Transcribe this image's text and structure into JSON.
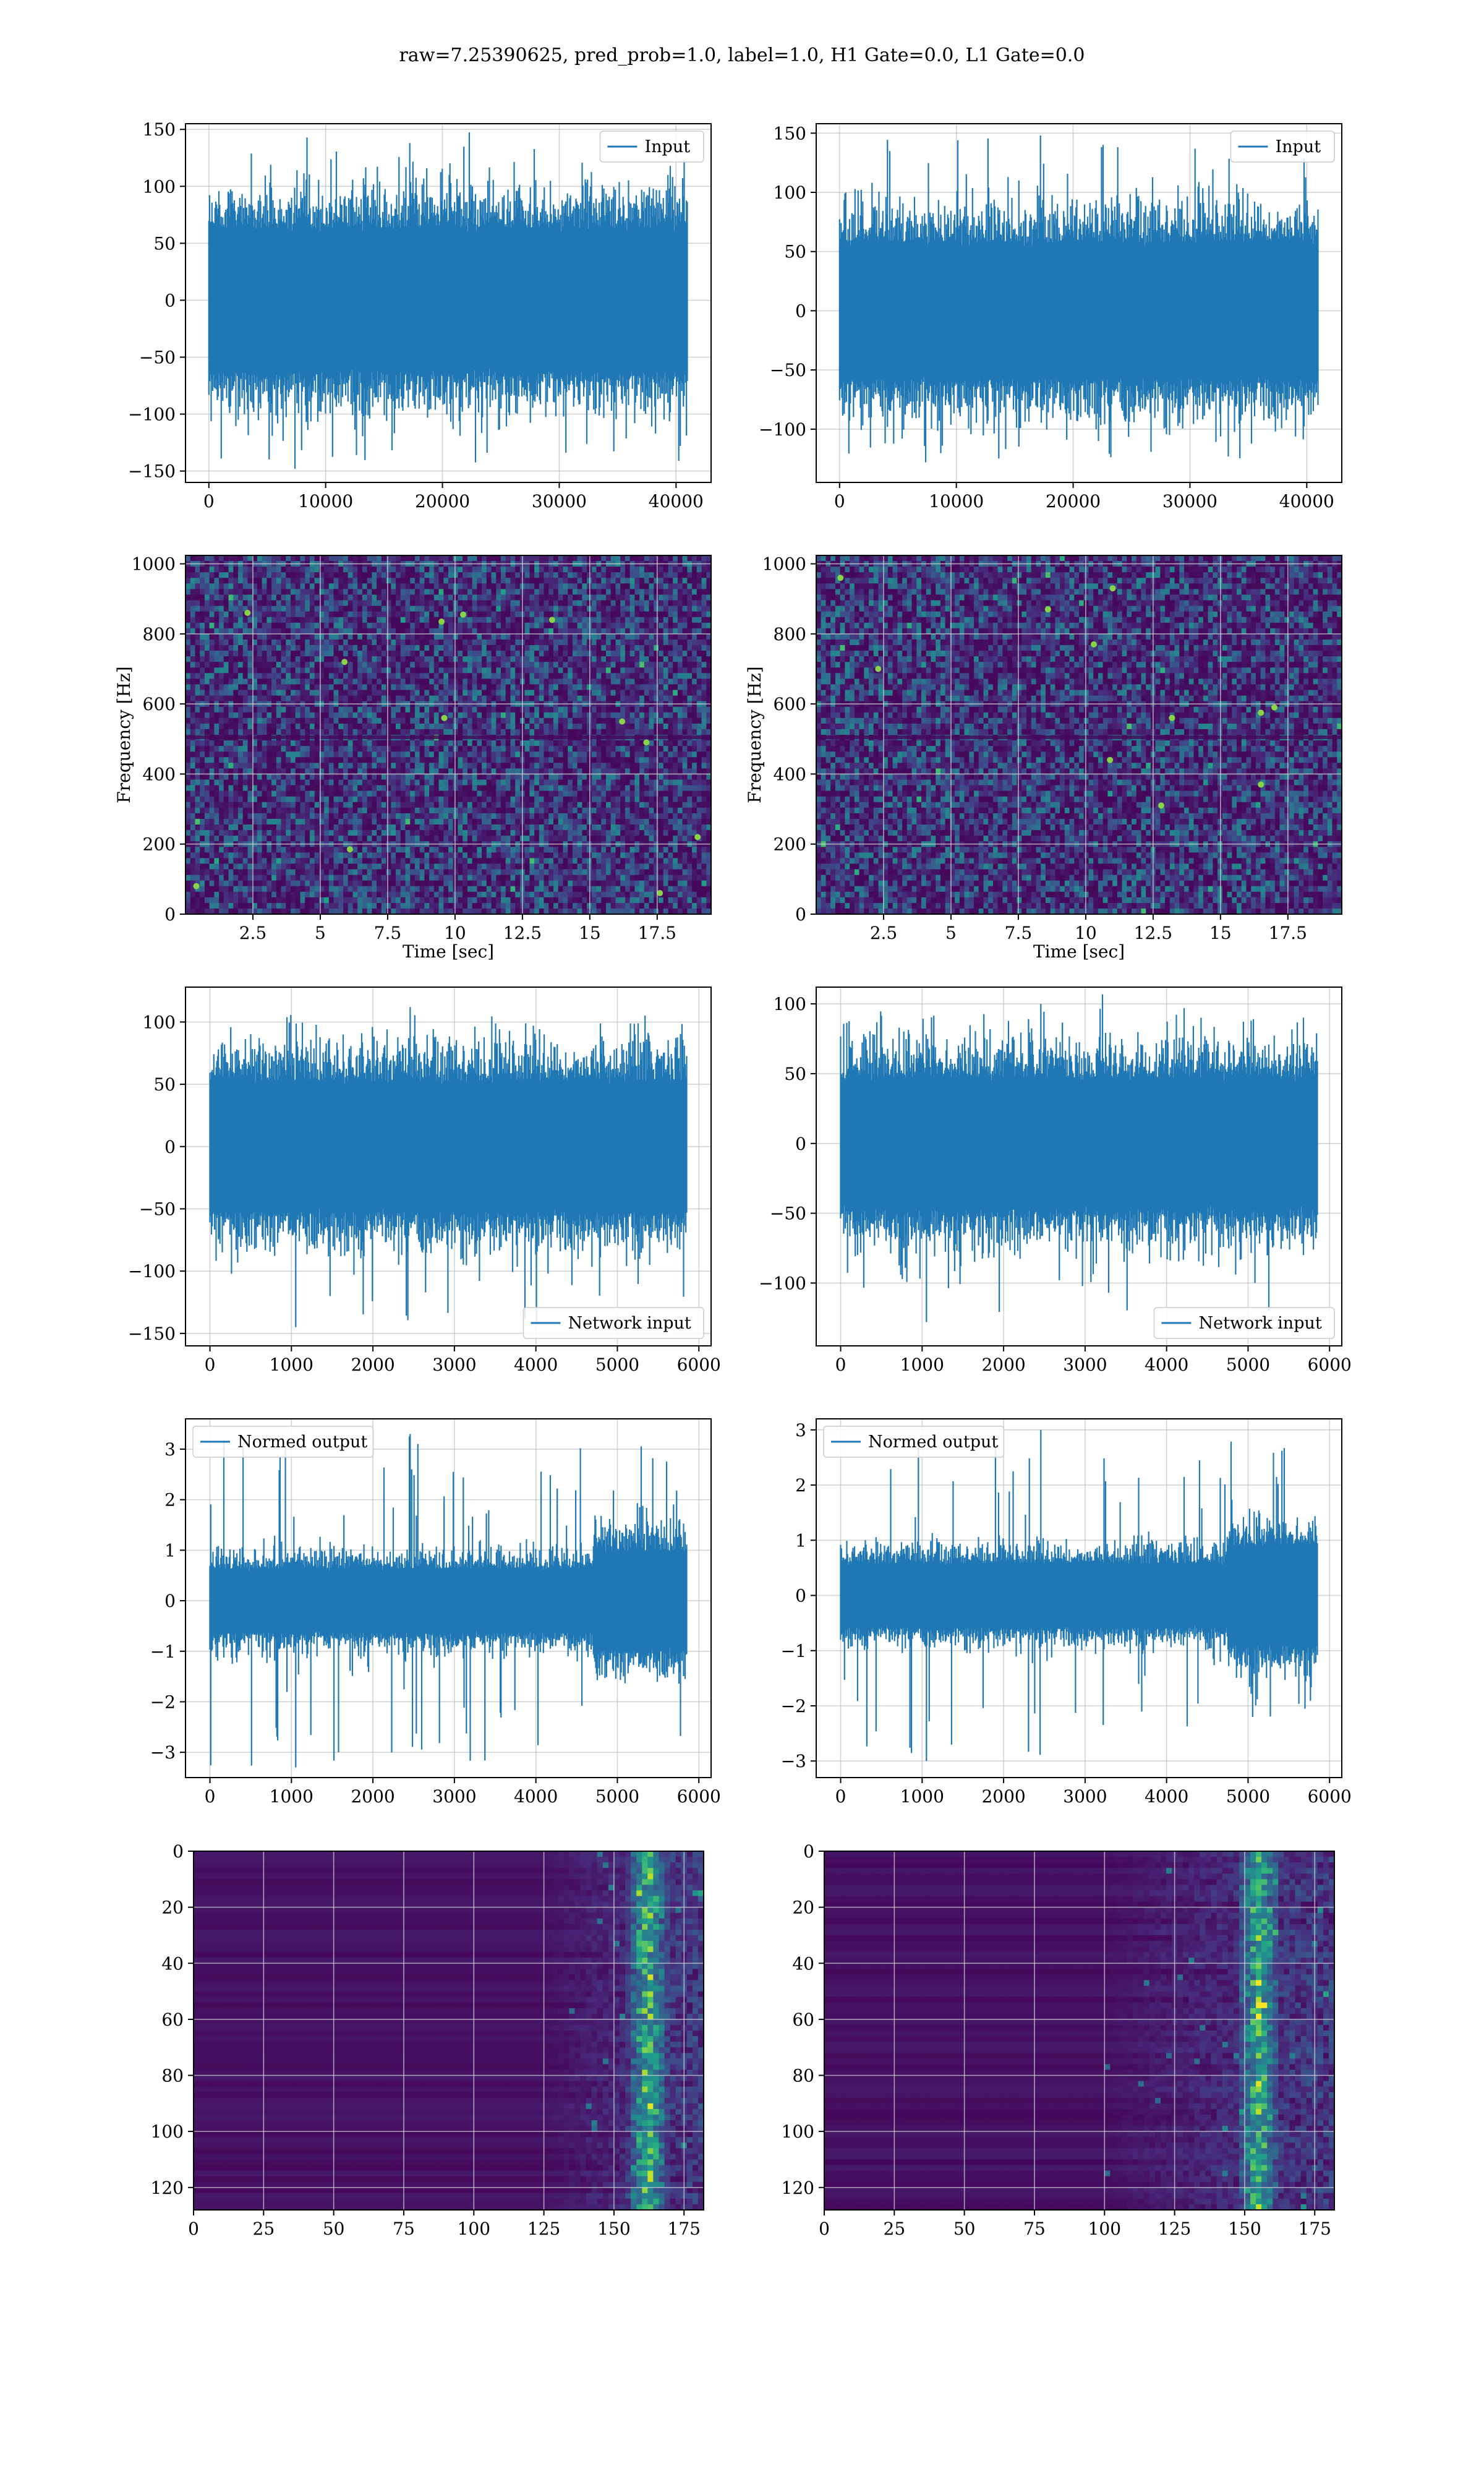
{
  "figure_title": "raw=7.25390625, pred_prob=1.0, label=1.0, H1 Gate=0.0, L1 Gate=0.0",
  "colors": {
    "line": "#1f77b4",
    "viridis_low": "#440154",
    "viridis_high": "#fde725",
    "grid": "#b0b0b0"
  },
  "chart_data": [
    {
      "id": "input-h1",
      "type": "line",
      "series": [
        {
          "name": "Input",
          "envelope": {
            "n": 40960,
            "core": 60,
            "peak_low": -148,
            "peak_high": 138
          }
        }
      ],
      "xlim": [
        -2000,
        43000
      ],
      "ylim": [
        -160,
        155
      ],
      "xticks": [
        0,
        10000,
        20000,
        30000,
        40000
      ],
      "yticks": [
        -150,
        -100,
        -50,
        0,
        50,
        100,
        150
      ],
      "xlabel": "",
      "ylabel": "",
      "legend": "upper right",
      "grid": true
    },
    {
      "id": "input-l1",
      "type": "line",
      "series": [
        {
          "name": "Input",
          "envelope": {
            "n": 40960,
            "core": 55,
            "peak_low": -128,
            "peak_high": 148
          }
        }
      ],
      "xlim": [
        -2000,
        43000
      ],
      "ylim": [
        -145,
        158
      ],
      "xticks": [
        0,
        10000,
        20000,
        30000,
        40000
      ],
      "yticks": [
        -100,
        -50,
        0,
        50,
        100,
        150
      ],
      "xlabel": "",
      "ylabel": "",
      "legend": "upper right",
      "grid": true
    },
    {
      "id": "spec-h1",
      "type": "heatmap",
      "xlim": [
        0,
        19.5
      ],
      "ylim": [
        0,
        1024
      ],
      "xticks": [
        2.5,
        5.0,
        7.5,
        10.0,
        12.5,
        15.0,
        17.5
      ],
      "yticks": [
        0,
        200,
        400,
        600,
        800,
        1000
      ],
      "xlabel": "Time [sec]",
      "ylabel": "Frequency [Hz]",
      "grid": true,
      "bright_spots": [
        [
          2.3,
          860
        ],
        [
          9.5,
          835
        ],
        [
          10.3,
          855
        ],
        [
          13.6,
          840
        ],
        [
          9.6,
          560
        ],
        [
          16.2,
          550
        ],
        [
          17.1,
          490
        ],
        [
          19.0,
          220
        ],
        [
          0.4,
          80
        ],
        [
          6.1,
          185
        ],
        [
          17.6,
          60
        ],
        [
          5.9,
          720
        ]
      ]
    },
    {
      "id": "spec-l1",
      "type": "heatmap",
      "xlim": [
        0,
        19.5
      ],
      "ylim": [
        0,
        1024
      ],
      "xticks": [
        2.5,
        5.0,
        7.5,
        10.0,
        12.5,
        15.0,
        17.5
      ],
      "yticks": [
        0,
        200,
        400,
        600,
        800,
        1000
      ],
      "xlabel": "Time [sec]",
      "ylabel": "Frequency [Hz]",
      "grid": true,
      "bright_spots": [
        [
          10.3,
          770
        ],
        [
          11.0,
          930
        ],
        [
          16.5,
          575
        ],
        [
          17.0,
          590
        ],
        [
          16.5,
          370
        ],
        [
          13.2,
          560
        ],
        [
          12.8,
          310
        ],
        [
          8.6,
          870
        ],
        [
          0.9,
          960
        ],
        [
          2.3,
          700
        ],
        [
          10.9,
          440
        ]
      ]
    },
    {
      "id": "netin-h1",
      "type": "line",
      "series": [
        {
          "name": "Network input",
          "envelope": {
            "n": 5850,
            "core": 50,
            "peak_low": -145,
            "peak_high": 112
          }
        }
      ],
      "xlim": [
        -300,
        6150
      ],
      "ylim": [
        -160,
        128
      ],
      "xticks": [
        0,
        1000,
        2000,
        3000,
        4000,
        5000,
        6000
      ],
      "yticks": [
        -150,
        -100,
        -50,
        0,
        50,
        100
      ],
      "xlabel": "",
      "ylabel": "",
      "legend": "lower right",
      "grid": true
    },
    {
      "id": "netin-l1",
      "type": "line",
      "series": [
        {
          "name": "Network input",
          "envelope": {
            "n": 5850,
            "core": 45,
            "peak_low": -128,
            "peak_high": 100
          }
        }
      ],
      "xlim": [
        -300,
        6150
      ],
      "ylim": [
        -145,
        112
      ],
      "xticks": [
        0,
        1000,
        2000,
        3000,
        4000,
        5000,
        6000
      ],
      "yticks": [
        -100,
        -50,
        0,
        50,
        100
      ],
      "xlabel": "",
      "ylabel": "",
      "legend": "lower right",
      "grid": true
    },
    {
      "id": "normed-h1",
      "type": "line",
      "series": [
        {
          "name": "Normed output",
          "envelope": {
            "n": 5850,
            "core": 0.6,
            "peak_low": -3.3,
            "peak_high": 3.3,
            "burst_start": 4700
          }
        }
      ],
      "xlim": [
        -300,
        6150
      ],
      "ylim": [
        -3.5,
        3.6
      ],
      "xticks": [
        0,
        1000,
        2000,
        3000,
        4000,
        5000,
        6000
      ],
      "yticks": [
        -3,
        -2,
        -1,
        0,
        1,
        2,
        3
      ],
      "xlabel": "",
      "ylabel": "",
      "legend": "upper left",
      "grid": true
    },
    {
      "id": "normed-l1",
      "type": "line",
      "series": [
        {
          "name": "Normed output",
          "envelope": {
            "n": 5850,
            "core": 0.55,
            "peak_low": -3.0,
            "peak_high": 3.0,
            "burst_start": 4750
          }
        }
      ],
      "xlim": [
        -300,
        6150
      ],
      "ylim": [
        -3.3,
        3.2
      ],
      "xticks": [
        0,
        1000,
        2000,
        3000,
        4000,
        5000,
        6000
      ],
      "yticks": [
        -3,
        -2,
        -1,
        0,
        1,
        2,
        3
      ],
      "xlabel": "",
      "ylabel": "",
      "legend": "upper left",
      "grid": true
    },
    {
      "id": "features-h1",
      "type": "heatmap",
      "xlim": [
        0,
        182
      ],
      "ylim": [
        128,
        0
      ],
      "xticks": [
        0,
        25,
        50,
        75,
        100,
        125,
        150,
        175
      ],
      "yticks": [
        0,
        20,
        40,
        60,
        80,
        100,
        120
      ],
      "xlabel": "",
      "ylabel": "",
      "grid": true,
      "active_from": 125,
      "peak_column": 162
    },
    {
      "id": "features-l1",
      "type": "heatmap",
      "xlim": [
        0,
        182
      ],
      "ylim": [
        128,
        0
      ],
      "xticks": [
        0,
        25,
        50,
        75,
        100,
        125,
        150,
        175
      ],
      "yticks": [
        0,
        20,
        40,
        60,
        80,
        100,
        120
      ],
      "xlabel": "",
      "ylabel": "",
      "grid": true,
      "active_from": 100,
      "peak_column": 155
    }
  ]
}
